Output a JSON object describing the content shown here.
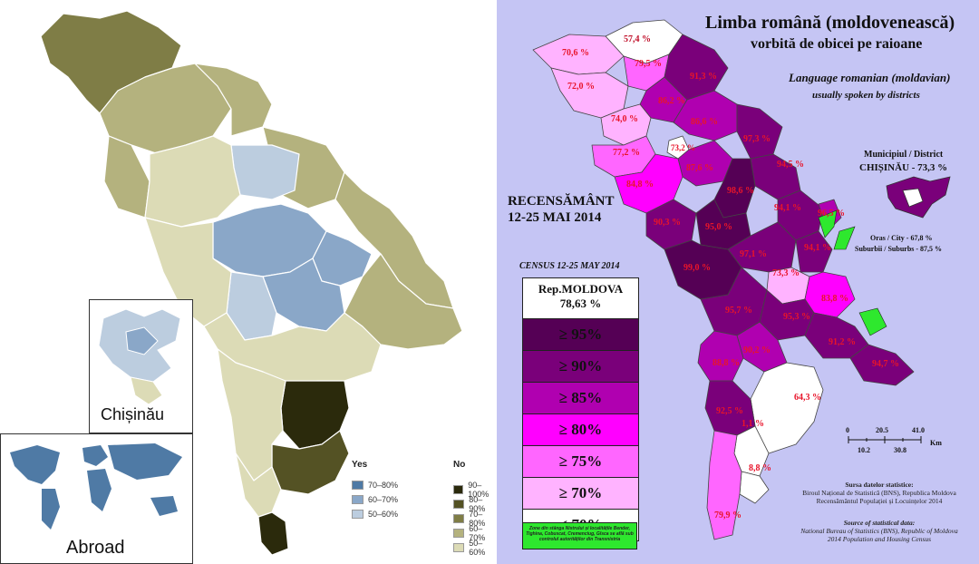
{
  "left_map": {
    "insets": {
      "chisinau_label": "Chișinău",
      "abroad_label": "Abroad"
    },
    "legend": {
      "yes_title": "Yes",
      "no_title": "No",
      "yes_items": [
        {
          "label": "70–80%",
          "color": "#4f7aa5"
        },
        {
          "label": "60–70%",
          "color": "#8aa7c8"
        },
        {
          "label": "50–60%",
          "color": "#bccddf"
        }
      ],
      "no_items": [
        {
          "label": "90–100%",
          "color": "#2b2a0c"
        },
        {
          "label": "80–90%",
          "color": "#545224"
        },
        {
          "label": "70–80%",
          "color": "#7f7d46"
        },
        {
          "label": "60–70%",
          "color": "#b4b27e"
        },
        {
          "label": "50–60%",
          "color": "#dcdbb6"
        }
      ]
    }
  },
  "right_map": {
    "title_ro": "Limba română (moldovenească)",
    "subtitle_ro": "vorbită de obicei pe raioane",
    "title_en": "Language romanian (moldavian)",
    "subtitle_en": "usually spoken by districts",
    "census_ro_line1": "RECENSĂMÂNT",
    "census_ro_line2": "12-25 MAI 2014",
    "census_en": "CENSUS 12-25 MAY 2014",
    "legend_head_line1": "Rep.MOLDOVA",
    "legend_head_line2": "78,63 %",
    "legend_rows": [
      {
        "label": "≥  95%",
        "color": "#550055"
      },
      {
        "label": "≥  90%",
        "color": "#7a007a"
      },
      {
        "label": "≥  85%",
        "color": "#b000b0"
      },
      {
        "label": "≥  80%",
        "color": "#ff00ff"
      },
      {
        "label": "≥  75%",
        "color": "#ff66ff"
      },
      {
        "label": "≥  70%",
        "color": "#ffb3ff"
      },
      {
        "label": "<  70%",
        "color": "#ffffff"
      }
    ],
    "green_note": "Zone din stânga Nistrului și localitățile Bender, Tighina, Cobuscat, Cremenciug, Gîsca se află sub controlul autorităților din Transnistria",
    "municipal_title": "Municipiul / District",
    "municipal_value": "CHIȘINĂU - 73,3 %",
    "city_line": "Oras / City - 67,8 %",
    "suburbs_line": "Suburbii / Suburbs - 87,5 %",
    "scale_top": [
      "0",
      "20.5",
      "41.0"
    ],
    "scale_bottom": [
      "10.2",
      "30.8"
    ],
    "scale_unit": "Km",
    "source_title_ro": "Sursa datelor statistice:",
    "source_ro_1": "Biroul Național de Statistică (BNS), Republica Moldova",
    "source_ro_2": "Recensământul Populației și Locuințelor 2014",
    "source_title_en": "Source of statistical data:",
    "source_en_1": "National Bureau of Statistics (BNS), Republic of Moldova",
    "source_en_2": "2014 Population and Housing Census",
    "district_values": [
      "57,4 %",
      "70,6 %",
      "79,5 %",
      "91,3 %",
      "72,0 %",
      "86,2 %",
      "74,0 %",
      "86,6 %",
      "97,3 %",
      "77,2 %",
      "73,2 %",
      "87,6 %",
      "94,5 %",
      "84,8 %",
      "98,6 %",
      "94,1 %",
      "96,5 %",
      "90,3 %",
      "95,0 %",
      "97,1 %",
      "94,1 %",
      "99,0 %",
      "73,3 %",
      "83,8 %",
      "95,7 %",
      "95,3 %",
      "90,2 %",
      "91,2 %",
      "88,8 %",
      "94,7 %",
      "64,3 %",
      "92,5 %",
      "1,1 %",
      "8,8 %",
      "79,9 %"
    ]
  },
  "colors": {
    "right_background": "#c5c5f4"
  }
}
